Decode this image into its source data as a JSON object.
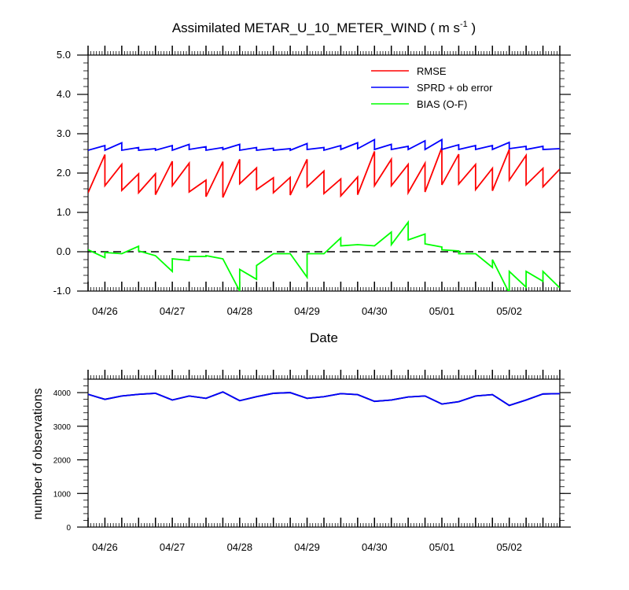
{
  "title": {
    "main": "Assimilated METAR_U_10_METER_WIND ( m s",
    "sup": "-1",
    "close": " )"
  },
  "chart_data": [
    {
      "type": "line",
      "title": "Assimilated METAR_U_10_METER_WIND ( m s-1 )",
      "xlabel": "Date",
      "ylabel": "",
      "x_tick_labels": [
        "04/26",
        "04/27",
        "04/28",
        "04/29",
        "04/30",
        "05/01",
        "05/02"
      ],
      "ylim": [
        -1.0,
        5.0
      ],
      "y_ticks": [
        "-1.0",
        "0.0",
        "1.0",
        "2.0",
        "3.0",
        "4.0",
        "5.0"
      ],
      "xlim": [
        0,
        7.0
      ],
      "x_tick_positions": [
        0.25,
        1.25,
        2.25,
        3.25,
        4.25,
        5.25,
        6.25
      ],
      "legend_position": "top-right",
      "reference_line": {
        "y": 0.0,
        "style": "dashed"
      },
      "series": [
        {
          "name": "RMSE",
          "color": "#ff0000",
          "points": [
            [
              0.0,
              1.5
            ],
            [
              0.25,
              2.47
            ],
            [
              0.25,
              1.68
            ],
            [
              0.5,
              2.22
            ],
            [
              0.5,
              1.56
            ],
            [
              0.75,
              1.98
            ],
            [
              0.75,
              1.5
            ],
            [
              1.0,
              1.98
            ],
            [
              1.0,
              1.45
            ],
            [
              1.25,
              2.3
            ],
            [
              1.25,
              1.68
            ],
            [
              1.5,
              2.25
            ],
            [
              1.5,
              1.52
            ],
            [
              1.75,
              1.82
            ],
            [
              1.75,
              1.4
            ],
            [
              2.0,
              2.29
            ],
            [
              2.0,
              1.38
            ],
            [
              2.25,
              2.35
            ],
            [
              2.25,
              1.73
            ],
            [
              2.5,
              2.13
            ],
            [
              2.5,
              1.58
            ],
            [
              2.75,
              1.88
            ],
            [
              2.75,
              1.5
            ],
            [
              3.0,
              1.89
            ],
            [
              3.0,
              1.44
            ],
            [
              3.25,
              2.35
            ],
            [
              3.25,
              1.65
            ],
            [
              3.5,
              2.05
            ],
            [
              3.5,
              1.48
            ],
            [
              3.75,
              1.85
            ],
            [
              3.75,
              1.42
            ],
            [
              4.0,
              1.9
            ],
            [
              4.0,
              1.45
            ],
            [
              4.25,
              2.55
            ],
            [
              4.25,
              1.68
            ],
            [
              4.5,
              2.35
            ],
            [
              4.5,
              1.68
            ],
            [
              4.75,
              2.22
            ],
            [
              4.75,
              1.5
            ],
            [
              5.0,
              2.25
            ],
            [
              5.0,
              1.52
            ],
            [
              5.25,
              2.65
            ],
            [
              5.25,
              1.7
            ],
            [
              5.5,
              2.48
            ],
            [
              5.5,
              1.72
            ],
            [
              5.75,
              2.22
            ],
            [
              5.75,
              1.58
            ],
            [
              6.0,
              2.12
            ],
            [
              6.0,
              1.55
            ],
            [
              6.25,
              2.6
            ],
            [
              6.25,
              1.82
            ],
            [
              6.5,
              2.45
            ],
            [
              6.5,
              1.7
            ],
            [
              6.75,
              2.12
            ],
            [
              6.75,
              1.65
            ],
            [
              7.0,
              2.1
            ]
          ]
        },
        {
          "name": "SPRD + ob error",
          "color": "#0000ff",
          "points": [
            [
              0.0,
              2.58
            ],
            [
              0.25,
              2.7
            ],
            [
              0.25,
              2.58
            ],
            [
              0.5,
              2.77
            ],
            [
              0.5,
              2.58
            ],
            [
              0.75,
              2.65
            ],
            [
              0.75,
              2.58
            ],
            [
              1.0,
              2.62
            ],
            [
              1.0,
              2.58
            ],
            [
              1.25,
              2.7
            ],
            [
              1.25,
              2.58
            ],
            [
              1.5,
              2.73
            ],
            [
              1.5,
              2.6
            ],
            [
              1.75,
              2.67
            ],
            [
              1.75,
              2.58
            ],
            [
              2.0,
              2.65
            ],
            [
              2.0,
              2.6
            ],
            [
              2.25,
              2.73
            ],
            [
              2.25,
              2.58
            ],
            [
              2.5,
              2.65
            ],
            [
              2.5,
              2.58
            ],
            [
              2.75,
              2.63
            ],
            [
              2.75,
              2.58
            ],
            [
              3.0,
              2.62
            ],
            [
              3.0,
              2.58
            ],
            [
              3.25,
              2.75
            ],
            [
              3.25,
              2.6
            ],
            [
              3.5,
              2.65
            ],
            [
              3.5,
              2.58
            ],
            [
              3.75,
              2.7
            ],
            [
              3.75,
              2.6
            ],
            [
              4.0,
              2.77
            ],
            [
              4.0,
              2.62
            ],
            [
              4.25,
              2.85
            ],
            [
              4.25,
              2.6
            ],
            [
              4.5,
              2.73
            ],
            [
              4.5,
              2.6
            ],
            [
              4.75,
              2.68
            ],
            [
              4.75,
              2.6
            ],
            [
              5.0,
              2.82
            ],
            [
              5.0,
              2.6
            ],
            [
              5.25,
              2.85
            ],
            [
              5.25,
              2.6
            ],
            [
              5.5,
              2.72
            ],
            [
              5.5,
              2.6
            ],
            [
              5.75,
              2.7
            ],
            [
              5.75,
              2.6
            ],
            [
              6.0,
              2.7
            ],
            [
              6.0,
              2.6
            ],
            [
              6.25,
              2.78
            ],
            [
              6.25,
              2.62
            ],
            [
              6.5,
              2.68
            ],
            [
              6.5,
              2.6
            ],
            [
              6.75,
              2.68
            ],
            [
              6.75,
              2.6
            ],
            [
              7.0,
              2.62
            ]
          ]
        },
        {
          "name": "BIAS (O-F)",
          "color": "#00ff00",
          "points": [
            [
              0.0,
              0.05
            ],
            [
              0.25,
              -0.15
            ],
            [
              0.25,
              -0.02
            ],
            [
              0.5,
              -0.05
            ],
            [
              0.75,
              0.14
            ],
            [
              0.75,
              0.02
            ],
            [
              1.0,
              -0.1
            ],
            [
              1.25,
              -0.5
            ],
            [
              1.25,
              -0.18
            ],
            [
              1.5,
              -0.22
            ],
            [
              1.5,
              -0.12
            ],
            [
              1.75,
              -0.12
            ],
            [
              1.75,
              -0.1
            ],
            [
              2.0,
              -0.18
            ],
            [
              2.25,
              -1.0
            ],
            [
              2.25,
              -0.45
            ],
            [
              2.5,
              -0.7
            ],
            [
              2.5,
              -0.35
            ],
            [
              2.75,
              -0.05
            ],
            [
              3.0,
              -0.05
            ],
            [
              3.25,
              -0.65
            ],
            [
              3.25,
              -0.05
            ],
            [
              3.5,
              -0.05
            ],
            [
              3.75,
              0.35
            ],
            [
              3.75,
              0.15
            ],
            [
              4.0,
              0.18
            ],
            [
              4.25,
              0.15
            ],
            [
              4.5,
              0.5
            ],
            [
              4.5,
              0.18
            ],
            [
              4.75,
              0.75
            ],
            [
              4.75,
              0.3
            ],
            [
              5.0,
              0.45
            ],
            [
              5.0,
              0.2
            ],
            [
              5.25,
              0.12
            ],
            [
              5.25,
              0.05
            ],
            [
              5.5,
              0.02
            ],
            [
              5.5,
              -0.05
            ],
            [
              5.75,
              -0.05
            ],
            [
              6.0,
              -0.4
            ],
            [
              6.0,
              -0.2
            ],
            [
              6.25,
              -1.05
            ],
            [
              6.25,
              -0.5
            ],
            [
              6.5,
              -0.9
            ],
            [
              6.5,
              -0.5
            ],
            [
              6.75,
              -0.75
            ],
            [
              6.75,
              -0.5
            ],
            [
              7.0,
              -0.92
            ]
          ]
        }
      ]
    },
    {
      "type": "line",
      "title": "",
      "xlabel": "",
      "ylabel": "number of observations",
      "x_tick_labels": [
        "04/26",
        "04/27",
        "04/28",
        "04/29",
        "04/30",
        "05/01",
        "05/02"
      ],
      "ylim": [
        0,
        4400
      ],
      "y_ticks": [
        "0",
        "1000",
        "2000",
        "3000",
        "4000"
      ],
      "xlim": [
        0,
        7.0
      ],
      "x_tick_positions": [
        0.25,
        1.25,
        2.25,
        3.25,
        4.25,
        5.25,
        6.25
      ],
      "series": [
        {
          "color": "#000000",
          "points": [
            [
              0.0,
              3950
            ],
            [
              0.25,
              3800
            ],
            [
              0.5,
              3900
            ],
            [
              0.75,
              3950
            ],
            [
              1.0,
              3980
            ],
            [
              1.25,
              3780
            ],
            [
              1.5,
              3900
            ],
            [
              1.75,
              3830
            ],
            [
              2.0,
              4020
            ],
            [
              2.25,
              3760
            ],
            [
              2.5,
              3880
            ],
            [
              2.75,
              3980
            ],
            [
              3.0,
              4000
            ],
            [
              3.25,
              3830
            ],
            [
              3.5,
              3880
            ],
            [
              3.75,
              3970
            ],
            [
              4.0,
              3940
            ],
            [
              4.25,
              3740
            ],
            [
              4.5,
              3780
            ],
            [
              4.75,
              3870
            ],
            [
              5.0,
              3900
            ],
            [
              5.25,
              3660
            ],
            [
              5.5,
              3730
            ],
            [
              5.75,
              3900
            ],
            [
              6.0,
              3940
            ],
            [
              6.25,
              3620
            ],
            [
              6.5,
              3780
            ],
            [
              6.75,
              3960
            ],
            [
              7.0,
              3970
            ]
          ]
        },
        {
          "color": "#0000ff",
          "points": [
            [
              0.0,
              3950
            ],
            [
              0.25,
              3800
            ],
            [
              0.5,
              3900
            ],
            [
              0.75,
              3950
            ],
            [
              1.0,
              3980
            ],
            [
              1.25,
              3780
            ],
            [
              1.5,
              3900
            ],
            [
              1.75,
              3830
            ],
            [
              2.0,
              4020
            ],
            [
              2.25,
              3760
            ],
            [
              2.5,
              3880
            ],
            [
              2.75,
              3980
            ],
            [
              3.0,
              4000
            ],
            [
              3.25,
              3830
            ],
            [
              3.5,
              3880
            ],
            [
              3.75,
              3970
            ],
            [
              4.0,
              3940
            ],
            [
              4.25,
              3740
            ],
            [
              4.5,
              3780
            ],
            [
              4.75,
              3870
            ],
            [
              5.0,
              3900
            ],
            [
              5.25,
              3660
            ],
            [
              5.5,
              3730
            ],
            [
              5.75,
              3900
            ],
            [
              6.0,
              3940
            ],
            [
              6.25,
              3620
            ],
            [
              6.5,
              3780
            ],
            [
              6.75,
              3960
            ],
            [
              7.0,
              3970
            ]
          ]
        }
      ]
    }
  ]
}
